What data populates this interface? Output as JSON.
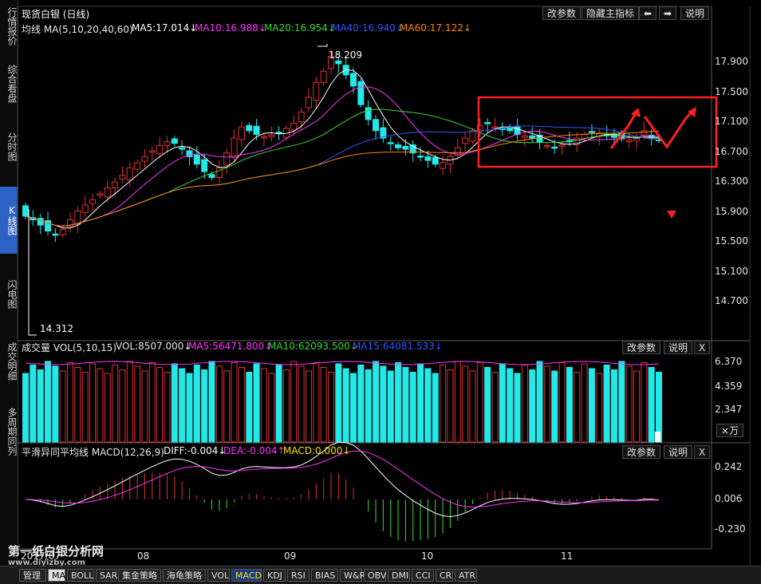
{
  "sidebar": {
    "tabs": [
      {
        "label": "行情报价",
        "active": false
      },
      {
        "label": "综合看盘",
        "active": false
      },
      {
        "label": "分时图",
        "active": false
      },
      {
        "label": "K线图",
        "active": true
      },
      {
        "label": "闪电图",
        "active": false
      },
      {
        "label": "成交明细",
        "active": false
      },
      {
        "label": "多周期同列",
        "active": false
      }
    ]
  },
  "main": {
    "title": "现货白银 (日线)",
    "buttons": {
      "params": "改参数",
      "hide_indicator": "隐藏主指标",
      "left": "⬅",
      "right": "➡",
      "help": "说明"
    },
    "ma": {
      "label": "均线 MA(5,10,20,40,60)",
      "ma5": "MA5:17.014↓",
      "ma10": "MA10:16.988↓",
      "ma20": "MA20:16.954↓",
      "ma40": "MA40:16.940↓",
      "ma60": "MA60:17.122↓",
      "colors": {
        "ma5": "#ffffff",
        "ma10": "#ff33ff",
        "ma20": "#33dd33",
        "ma40": "#3355ff",
        "ma60": "#ff8800"
      }
    },
    "high_label": "18.209",
    "low_label": "14.312",
    "yaxis": [
      "17.900",
      "17.500",
      "17.100",
      "16.700",
      "16.300",
      "15.900",
      "15.500",
      "15.100",
      "14.700"
    ]
  },
  "volume": {
    "label": "成交量 VOL(5,10,15)",
    "vol": "VOL:8507.000↓",
    "ma5": "MA5:56471.800↓",
    "ma10": "MA10:62093.500↓",
    "ma15": "MA15:64081.533↓",
    "params": "改参数",
    "help": "说明",
    "close": "X",
    "yaxis": [
      "6.370",
      "4.359",
      "2.347"
    ],
    "unit": "×万"
  },
  "macd": {
    "label": "平滑异同平均线 MACD(12,26,9)",
    "diff": "DIFF:-0.004↓",
    "dea": "DEA:-0.004↑",
    "macd": "MACD:0.000↓",
    "params": "改参数",
    "help": "说明",
    "close": "X",
    "yaxis": [
      "0.242",
      "0.006",
      "-0.230"
    ]
  },
  "xaxis": [
    "2017/07",
    "08",
    "09",
    "10",
    "11"
  ],
  "watermark": {
    "line1": "第一纸白银分析网",
    "line2": "www.diyizby.com"
  },
  "bottom_tabs": [
    "管理",
    "MA",
    "BOLL",
    "SAR",
    "集金策略",
    "海龟策略",
    "VOL",
    "MACD",
    "KDJ",
    "RSI",
    "BIAS",
    "W&R",
    "OBV",
    "DMI",
    "CCI",
    "CR",
    "ATR"
  ],
  "colors": {
    "up": "#e23030",
    "down": "#22e8e8",
    "annotation": "#ff2020"
  },
  "chart_data": {
    "type": "candlestick",
    "x_months": [
      "2017/07",
      "08",
      "09",
      "10",
      "11"
    ],
    "ylim": [
      14.3,
      18.25
    ],
    "closes": [
      15.9,
      15.85,
      15.78,
      15.7,
      15.65,
      15.72,
      15.85,
      15.97,
      16.05,
      16.12,
      16.2,
      16.28,
      16.36,
      16.45,
      16.55,
      16.62,
      16.7,
      16.78,
      16.85,
      16.9,
      16.88,
      16.8,
      16.7,
      16.6,
      16.5,
      16.42,
      16.55,
      16.75,
      16.95,
      17.1,
      17.05,
      17.0,
      16.97,
      16.99,
      17.02,
      17.08,
      17.15,
      17.3,
      17.5,
      17.7,
      17.85,
      18.05,
      17.95,
      17.8,
      17.65,
      17.4,
      17.2,
      17.05,
      16.95,
      16.88,
      16.82,
      16.8,
      16.75,
      16.7,
      16.65,
      16.6,
      16.62,
      16.7,
      16.82,
      16.95,
      17.05,
      17.12,
      17.15,
      17.1,
      17.08,
      17.05,
      17.0,
      16.98,
      16.95,
      16.9,
      16.85,
      16.82,
      16.86,
      16.9,
      16.95,
      17.0,
      17.03,
      17.02,
      16.98,
      16.96,
      16.94,
      16.92,
      16.95,
      17.05,
      16.95,
      16.92
    ]
  }
}
